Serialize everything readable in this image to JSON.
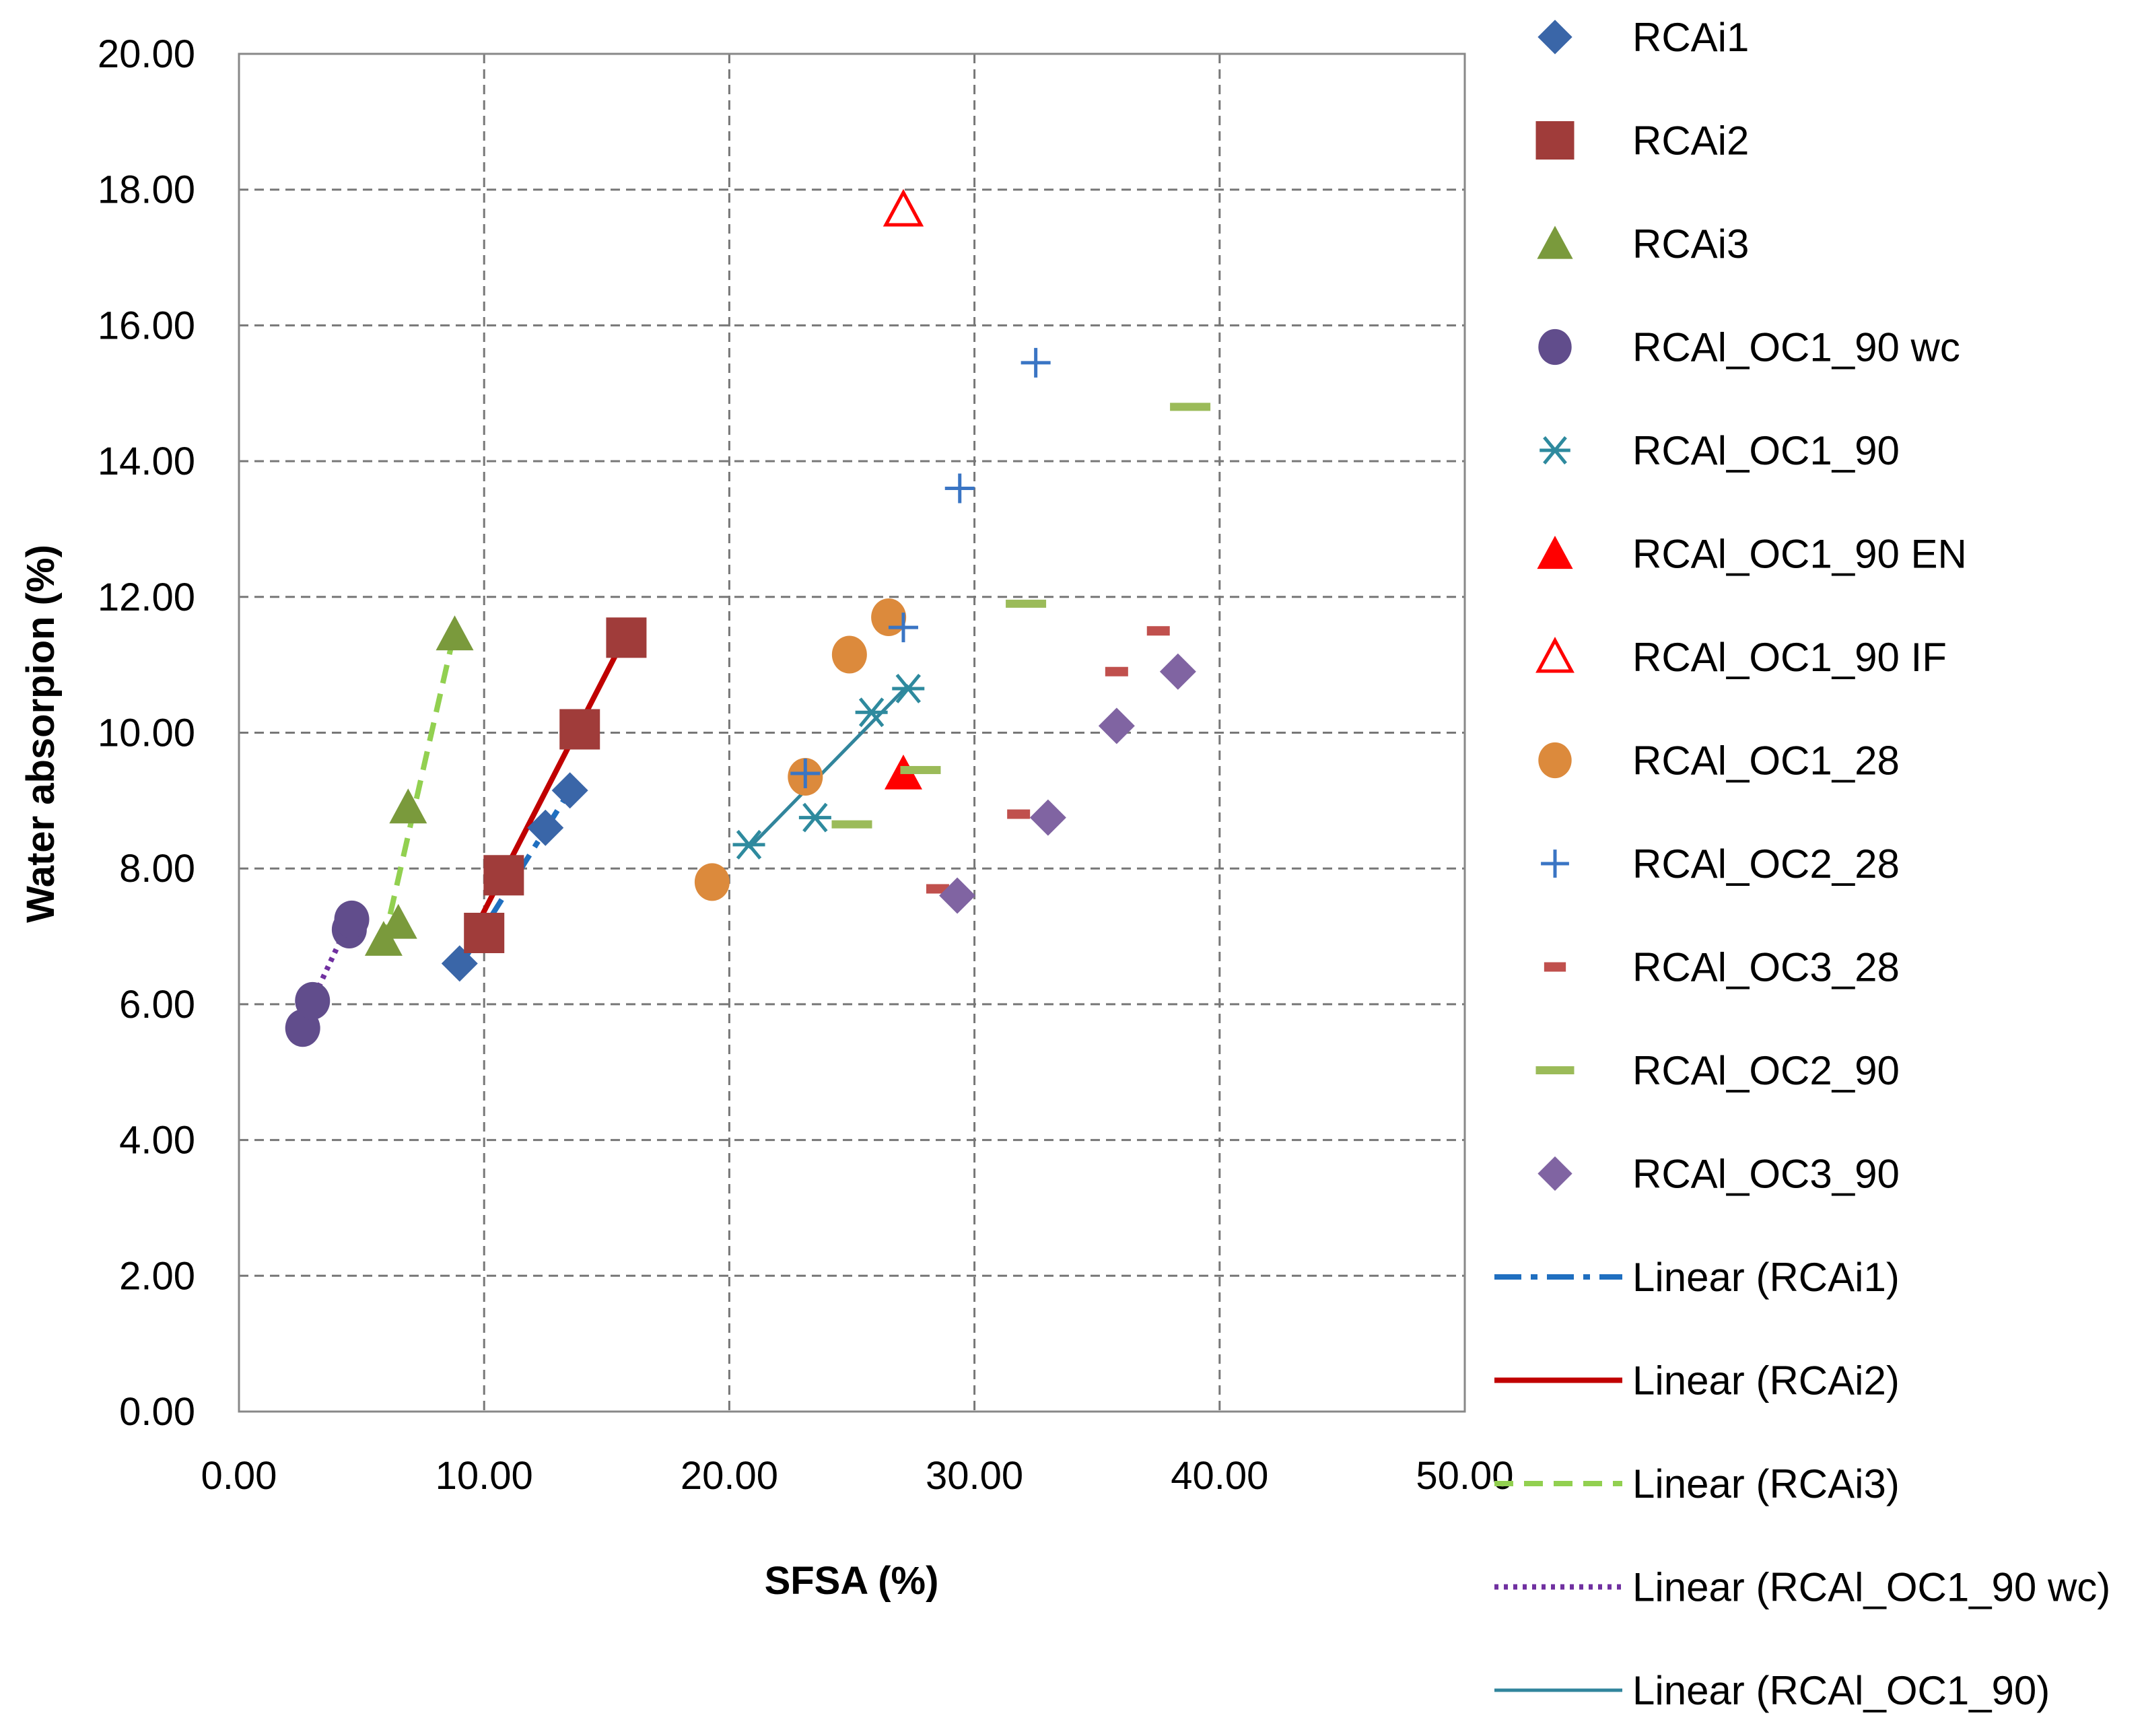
{
  "chart_data": {
    "type": "scatter",
    "title": "",
    "xlabel": "SFSA (%)",
    "ylabel": "Water absorpion (%)",
    "xlim": [
      0,
      50
    ],
    "ylim": [
      0,
      20
    ],
    "grid": true,
    "legend_position": "right",
    "x_ticks": [
      {
        "value": 0,
        "label": "0.00"
      },
      {
        "value": 10,
        "label": "10.00"
      },
      {
        "value": 20,
        "label": "20.00"
      },
      {
        "value": 30,
        "label": "30.00"
      },
      {
        "value": 40,
        "label": "40.00"
      },
      {
        "value": 50,
        "label": "50.00"
      }
    ],
    "y_ticks": [
      {
        "value": 0,
        "label": "0.00"
      },
      {
        "value": 2,
        "label": "2.00"
      },
      {
        "value": 4,
        "label": "4.00"
      },
      {
        "value": 6,
        "label": "6.00"
      },
      {
        "value": 8,
        "label": "8.00"
      },
      {
        "value": 10,
        "label": "10.00"
      },
      {
        "value": 12,
        "label": "12.00"
      },
      {
        "value": 14,
        "label": "14.00"
      },
      {
        "value": 16,
        "label": "16.00"
      },
      {
        "value": 18,
        "label": "18.00"
      },
      {
        "value": 20,
        "label": "20.00"
      }
    ],
    "series": [
      {
        "name": "RCAi1",
        "marker": "diamond",
        "color": "#3a66a8",
        "points": [
          [
            9.0,
            6.6
          ],
          [
            10.8,
            7.9
          ],
          [
            12.5,
            8.6
          ],
          [
            13.5,
            9.15
          ]
        ]
      },
      {
        "name": "RCAi2",
        "marker": "square",
        "color": "#a03c3a",
        "points": [
          [
            10.0,
            7.05
          ],
          [
            10.8,
            7.9
          ],
          [
            13.9,
            10.05
          ],
          [
            15.8,
            11.4
          ]
        ]
      },
      {
        "name": "RCAi3",
        "marker": "triangle",
        "color": "#7a9a3c",
        "points": [
          [
            5.9,
            6.95
          ],
          [
            6.5,
            7.2
          ],
          [
            6.9,
            8.9
          ],
          [
            8.8,
            11.45
          ]
        ]
      },
      {
        "name": "RCAl_OC1_90 wc",
        "marker": "circle",
        "color": "#614d8c",
        "points": [
          [
            2.6,
            5.65
          ],
          [
            3.0,
            6.05
          ],
          [
            4.5,
            7.1
          ],
          [
            4.6,
            7.25
          ]
        ]
      },
      {
        "name": "RCAl_OC1_90",
        "marker": "asterisk",
        "color": "#2e8a9e",
        "points": [
          [
            20.8,
            8.35
          ],
          [
            23.5,
            8.75
          ],
          [
            25.8,
            10.3
          ],
          [
            27.3,
            10.65
          ]
        ]
      },
      {
        "name": "RCAl_OC1_90 EN",
        "marker": "triangle",
        "color": "#ff0000",
        "points": [
          [
            27.1,
            9.4
          ]
        ]
      },
      {
        "name": "RCAl_OC1_90 IF",
        "marker": "triangle-open",
        "color": "#ff0000",
        "points": [
          [
            27.1,
            17.7
          ]
        ]
      },
      {
        "name": "RCAl_OC1_28",
        "marker": "circle",
        "color": "#dc8a3c",
        "points": [
          [
            19.3,
            7.8
          ],
          [
            23.1,
            9.35
          ],
          [
            24.9,
            11.15
          ],
          [
            26.5,
            11.7
          ]
        ]
      },
      {
        "name": "RCAl_OC2_28",
        "marker": "plus",
        "color": "#3a75c4",
        "points": [
          [
            23.1,
            9.4
          ],
          [
            27.1,
            11.55
          ],
          [
            29.4,
            13.6
          ],
          [
            32.5,
            15.45
          ]
        ]
      },
      {
        "name": "RCAl_OC3_28",
        "marker": "dash-small",
        "color": "#c0504d",
        "points": [
          [
            28.5,
            7.7
          ],
          [
            31.8,
            8.8
          ],
          [
            35.8,
            10.9
          ],
          [
            37.5,
            11.5
          ]
        ]
      },
      {
        "name": "RCAl_OC2_90",
        "marker": "dash",
        "color": "#9bbb59",
        "points": [
          [
            25.0,
            8.65
          ],
          [
            27.8,
            9.45
          ],
          [
            32.1,
            11.9
          ],
          [
            38.8,
            14.8
          ]
        ]
      },
      {
        "name": "RCAl_OC3_90",
        "marker": "diamond",
        "color": "#8064a2",
        "points": [
          [
            29.3,
            7.6
          ],
          [
            33.0,
            8.75
          ],
          [
            35.8,
            10.1
          ],
          [
            38.3,
            10.9
          ]
        ]
      }
    ],
    "trendlines": [
      {
        "name": "Linear (RCAi1)",
        "color": "#1f6fc0",
        "dash": "dashdot",
        "from": [
          9.0,
          6.55
        ],
        "to": [
          13.5,
          9.15
        ]
      },
      {
        "name": "Linear (RCAi2)",
        "color": "#c00000",
        "dash": "solid",
        "from": [
          9.9,
          7.3
        ],
        "to": [
          15.8,
          11.45
        ]
      },
      {
        "name": "Linear (RCAi3)",
        "color": "#92d050",
        "dash": "dashed",
        "from": [
          5.9,
          6.9
        ],
        "to": [
          8.8,
          11.5
        ]
      },
      {
        "name": "Linear (RCAl_OC1_90 wc)",
        "color": "#7030a0",
        "dash": "dotted",
        "from": [
          2.6,
          5.75
        ],
        "to": [
          4.6,
          7.3
        ]
      },
      {
        "name": "Linear (RCAl_OC1_90)",
        "color": "#31859c",
        "dash": "solid-thin",
        "from": [
          20.8,
          8.3
        ],
        "to": [
          27.3,
          10.7
        ]
      }
    ]
  }
}
